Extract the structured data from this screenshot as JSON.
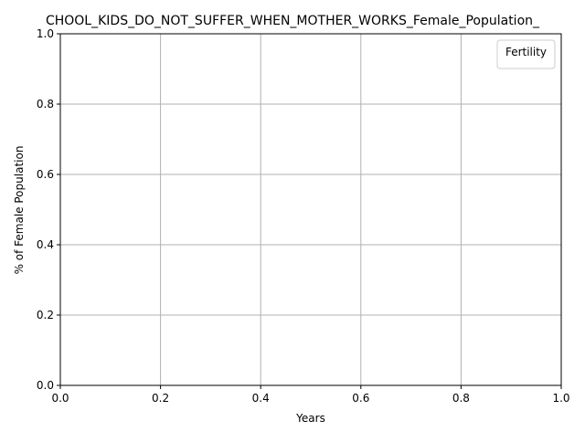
{
  "chart_data": {
    "type": "line",
    "title": "CHOOL_KIDS_DO_NOT_SUFFER_WHEN_MOTHER_WORKS_Female_Population_",
    "xlabel": "Years",
    "ylabel": "% of Female Population",
    "xlim": [
      0.0,
      1.0
    ],
    "ylim": [
      0.0,
      1.0
    ],
    "x_ticks": [
      0.0,
      0.2,
      0.4,
      0.6,
      0.8,
      1.0
    ],
    "y_ticks": [
      0.0,
      0.2,
      0.4,
      0.6,
      0.8,
      1.0
    ],
    "x_tick_labels": [
      "0.0",
      "0.2",
      "0.4",
      "0.6",
      "0.8",
      "1.0"
    ],
    "y_tick_labels": [
      "0.0",
      "0.2",
      "0.4",
      "0.6",
      "0.8",
      "1.0"
    ],
    "grid": true,
    "legend": {
      "title": "Fertility",
      "placement": "top-right",
      "entries": []
    },
    "series": []
  },
  "colors": {
    "axis": "#000000",
    "grid": "#b0b0b0",
    "legend_border": "#cccccc",
    "background": "#ffffff"
  }
}
